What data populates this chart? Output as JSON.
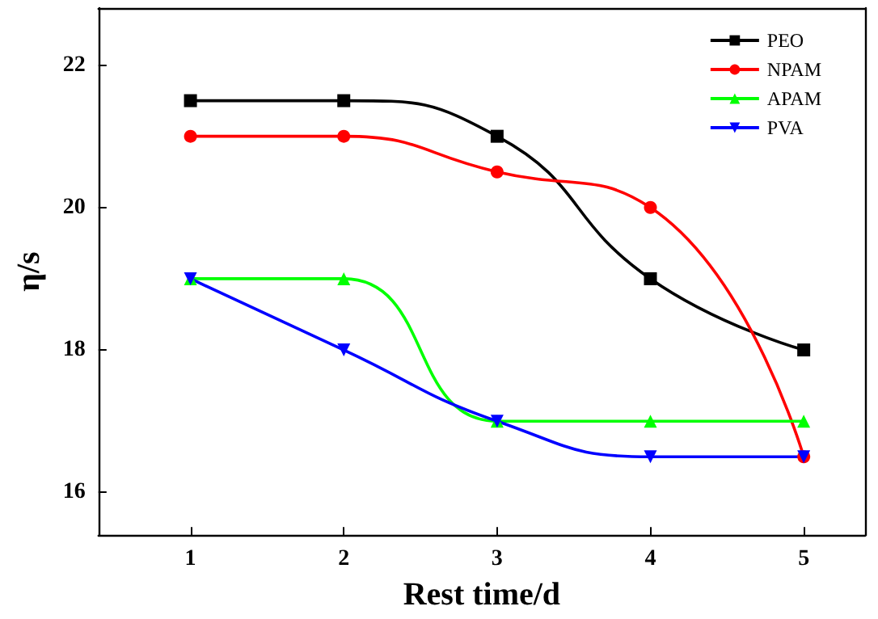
{
  "chart_data": {
    "type": "line",
    "xlabel": "Rest time/d",
    "ylabel": "η/s",
    "x": [
      1,
      2,
      3,
      4,
      5
    ],
    "series": [
      {
        "name": "PEO",
        "color": "#000000",
        "marker": "square",
        "values": [
          21.5,
          21.5,
          21,
          19,
          18
        ]
      },
      {
        "name": "NPAM",
        "color": "#ff0000",
        "marker": "circle",
        "values": [
          21,
          21,
          20.5,
          20,
          16.5
        ]
      },
      {
        "name": "APAM",
        "color": "#00ff00",
        "marker": "triangle",
        "values": [
          19,
          19,
          17,
          17,
          17
        ]
      },
      {
        "name": "PVA",
        "color": "#0000ff",
        "marker": "triangle-down",
        "values": [
          19,
          18,
          17,
          16.5,
          16.5
        ]
      }
    ],
    "xlim": [
      0.4,
      5.4
    ],
    "xticks": [
      1,
      2,
      3,
      4,
      5
    ],
    "ylim": [
      15.4,
      22.8
    ],
    "yticks": [
      16,
      18,
      20,
      22
    ],
    "grid": false,
    "legend": "top right"
  }
}
